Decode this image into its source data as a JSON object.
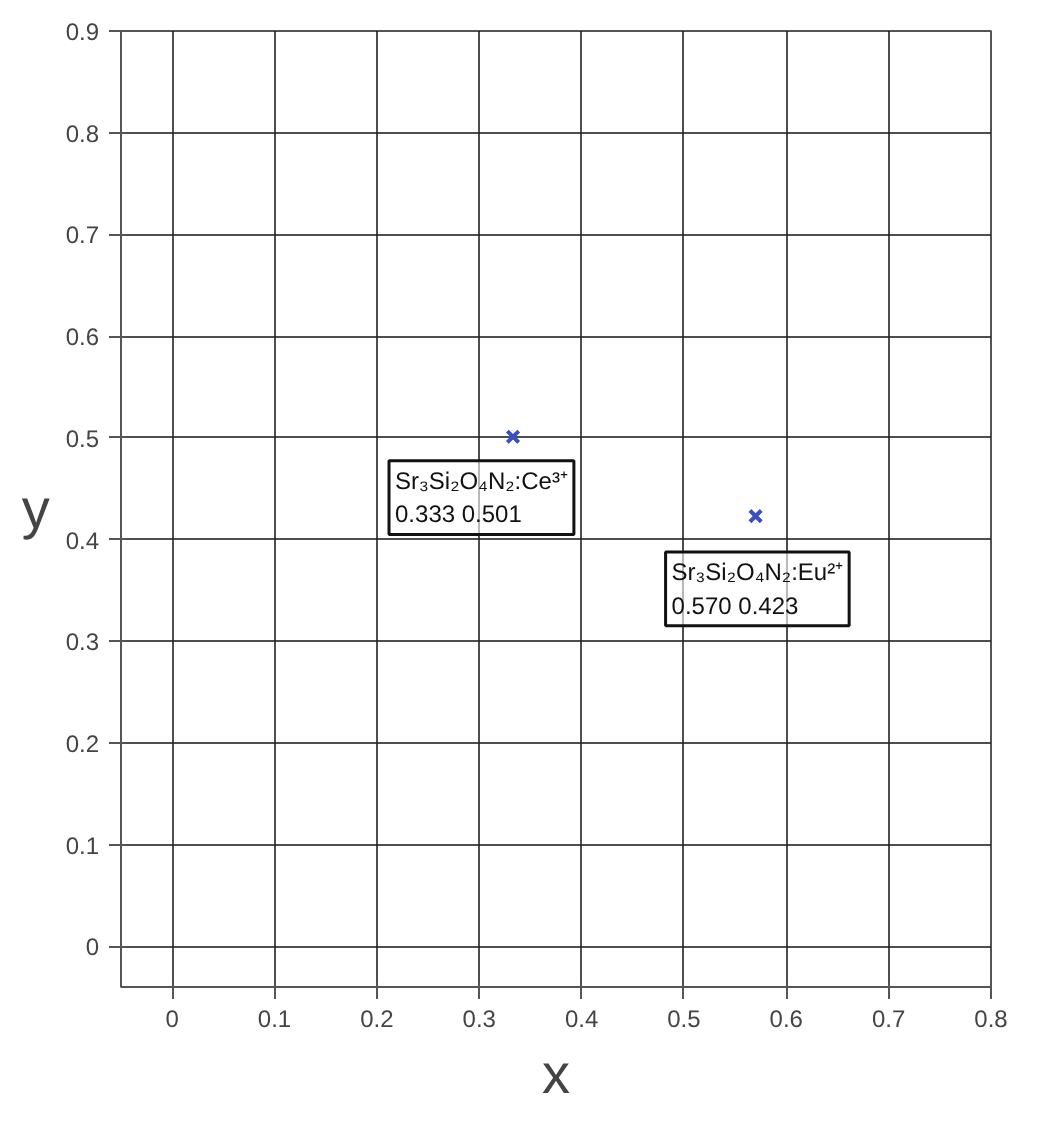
{
  "chart_data": {
    "type": "scatter",
    "xlabel": "x",
    "ylabel": "y",
    "xlim": [
      -0.05,
      0.8
    ],
    "ylim": [
      -0.04,
      0.9
    ],
    "xticks": [
      0,
      0.1,
      0.2,
      0.3,
      0.4,
      0.5,
      0.6,
      0.7,
      0.8
    ],
    "yticks": [
      0,
      0.1,
      0.2,
      0.3,
      0.4,
      0.5,
      0.6,
      0.7,
      0.8,
      0.9
    ],
    "grid": true,
    "marker": "cross",
    "series": [
      {
        "color": "#3a4fc0",
        "x": [
          0.333,
          0.57
        ],
        "values": [
          0.501,
          0.423
        ]
      }
    ],
    "annotations": [
      {
        "text": "Sr₃Si₂O₄N₂:Ce³⁺\n0.333    0.501",
        "x": 0.333,
        "y": 0.501
      },
      {
        "text": "Sr₃Si₂O₄N₂:Eu²⁺\n0.570   0.423",
        "x": 0.57,
        "y": 0.423
      }
    ]
  }
}
